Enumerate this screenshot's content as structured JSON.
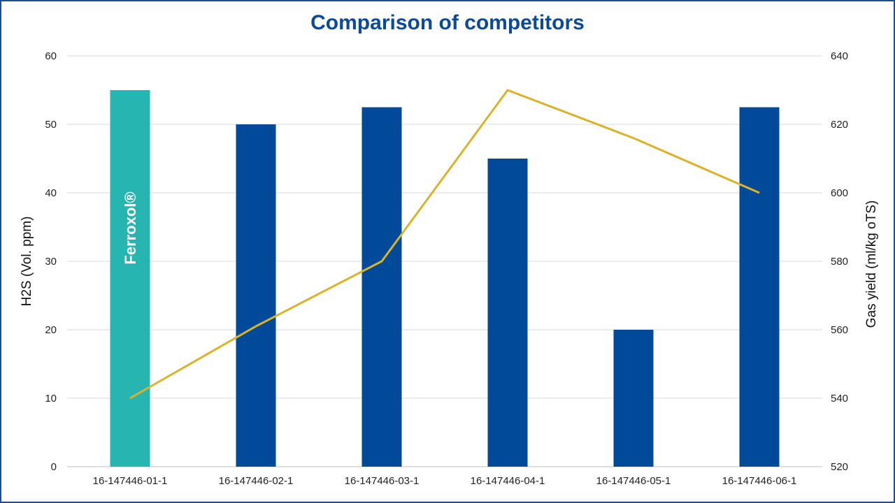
{
  "chart_data": {
    "type": "bar",
    "title": "Comparison of competitors",
    "categories": [
      "16-147446-01-1",
      "16-147446-02-1",
      "16-147446-03-1",
      "16-147446-04-1",
      "16-147446-05-1",
      "16-147446-06-1"
    ],
    "series": [
      {
        "name": "H2S (Vol. ppm)",
        "type": "bar",
        "axis": "left",
        "values": [
          55,
          50,
          52.5,
          45,
          20,
          52.5
        ],
        "colors": [
          "#26b5b0",
          "#004a99",
          "#004a99",
          "#004a99",
          "#004a99",
          "#004a99"
        ]
      },
      {
        "name": "Gas yield (ml/kg oTS)",
        "type": "line",
        "axis": "right",
        "values": [
          540,
          561,
          580,
          630,
          616,
          600
        ],
        "color": "#dbb32a"
      }
    ],
    "bar_annotations": [
      {
        "category_index": 0,
        "text": "Ferroxol®"
      }
    ],
    "ylabel": "H2S (Vol. ppm)",
    "ylabel_right": "Gas yield (ml/kg oTS)",
    "ylim": [
      0,
      60
    ],
    "yticks": [
      0,
      10,
      20,
      30,
      40,
      50,
      60
    ],
    "ylim_right": [
      520,
      640
    ],
    "yticks_right": [
      520,
      540,
      560,
      580,
      600,
      620,
      640
    ],
    "grid": true,
    "legend": "none"
  }
}
